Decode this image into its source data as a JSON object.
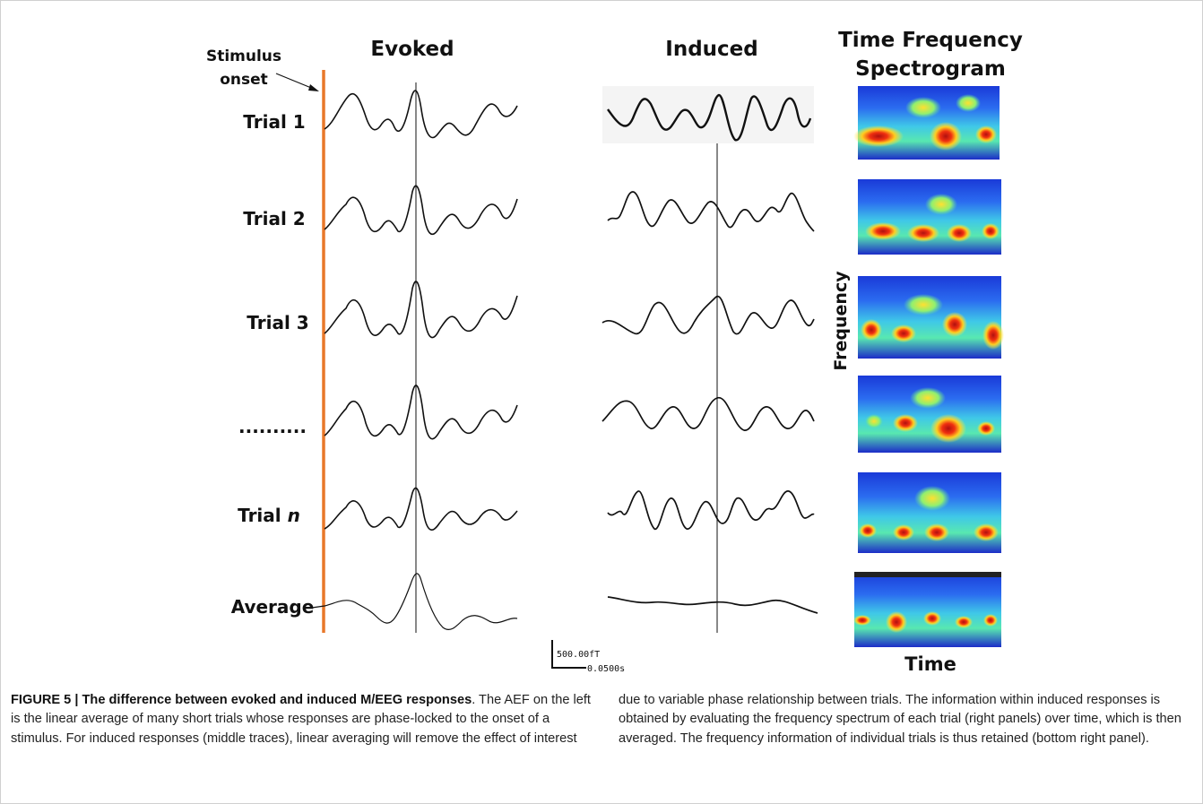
{
  "figure": {
    "stimulus_label_line1": "Stimulus",
    "stimulus_label_line2": "onset",
    "col_evoked": "Evoked",
    "col_induced": "Induced",
    "col_tf_line1": "Time Frequency",
    "col_tf_line2": "Spectrogram",
    "rows": [
      "Trial 1",
      "Trial 2",
      "Trial 3",
      "..........",
      "Trial ",
      "Average"
    ],
    "row5_italic": "n",
    "y_axis_label": "Frequency",
    "x_axis_label": "Time",
    "scale_amplitude": "500.00fT",
    "scale_time": "0.0500s",
    "colors": {
      "onset_line": "#e8782a",
      "trace": "#111111"
    }
  },
  "caption": {
    "figure_no": "FIGURE 5 | ",
    "title": "The difference between evoked and induced M/EEG responses",
    "left_text": ". The AEF on the left is the linear average of many short trials whose responses are phase-locked to the onset of a stimulus. For induced responses (middle traces), linear averaging will remove the effect of interest",
    "right_text": "due to variable phase relationship between trials. The information within induced responses is obtained by evaluating the frequency spectrum of each trial (right panels) over time, which is then averaged. The frequency information of individual trials is thus retained (bottom right panel)."
  }
}
